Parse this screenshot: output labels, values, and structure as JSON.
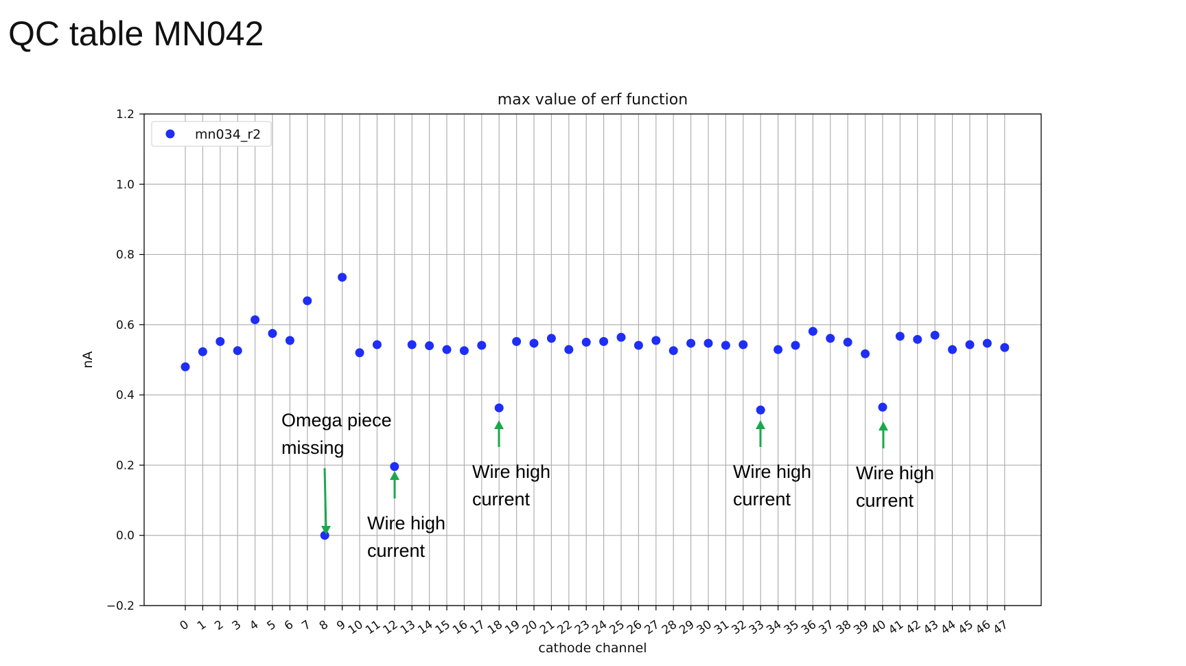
{
  "slide": {
    "title": "QC table MN042"
  },
  "chart_data": {
    "type": "scatter",
    "title": "max value of erf function",
    "xlabel": "cathode channel",
    "ylabel": "nA",
    "ylim": [
      -0.2,
      1.2
    ],
    "yticks": [
      -0.2,
      0.0,
      0.2,
      0.4,
      0.6,
      0.8,
      1.0,
      1.2
    ],
    "ytick_labels": [
      "−0.2",
      "0.0",
      "0.2",
      "0.4",
      "0.6",
      "0.8",
      "1.0",
      "1.2"
    ],
    "x": [
      0,
      1,
      2,
      3,
      4,
      5,
      6,
      7,
      8,
      9,
      10,
      11,
      12,
      13,
      14,
      15,
      16,
      17,
      18,
      19,
      20,
      21,
      22,
      23,
      24,
      25,
      26,
      27,
      28,
      29,
      30,
      31,
      32,
      33,
      34,
      35,
      36,
      37,
      38,
      39,
      40,
      41,
      42,
      43,
      44,
      45,
      46,
      47
    ],
    "xtick_labels": [
      "0",
      "1",
      "2",
      "3",
      "4",
      "5",
      "6",
      "7",
      "8",
      "9",
      "10",
      "11",
      "12",
      "13",
      "14",
      "15",
      "16",
      "17",
      "18",
      "19",
      "20",
      "21",
      "22",
      "23",
      "24",
      "25",
      "26",
      "27",
      "28",
      "29",
      "30",
      "31",
      "32",
      "33",
      "34",
      "35",
      "36",
      "37",
      "38",
      "39",
      "40",
      "41",
      "42",
      "43",
      "44",
      "45",
      "46",
      "47"
    ],
    "series": [
      {
        "name": "mn034_r2",
        "color": "#1f2ef5",
        "values": [
          0.48,
          0.523,
          0.552,
          0.526,
          0.614,
          0.575,
          0.555,
          0.668,
          0.0,
          0.735,
          0.52,
          0.543,
          0.196,
          0.543,
          0.54,
          0.529,
          0.526,
          0.541,
          0.363,
          0.552,
          0.547,
          0.561,
          0.529,
          0.55,
          0.552,
          0.564,
          0.541,
          0.555,
          0.526,
          0.547,
          0.547,
          0.541,
          0.543,
          0.357,
          0.529,
          0.541,
          0.581,
          0.561,
          0.55,
          0.517,
          0.365,
          0.567,
          0.558,
          0.57,
          0.529,
          0.543,
          0.547,
          0.535
        ]
      }
    ],
    "grid": true,
    "legend": "top-left",
    "annotations": [
      {
        "lines": [
          "Omega piece",
          "missing"
        ],
        "target_x": 8,
        "target_y": 0.0
      },
      {
        "lines": [
          "Wire high",
          "current"
        ],
        "target_x": 12,
        "target_y": 0.196
      },
      {
        "lines": [
          "Wire high",
          "current"
        ],
        "target_x": 18,
        "target_y": 0.363
      },
      {
        "lines": [
          "Wire high",
          "current"
        ],
        "target_x": 33,
        "target_y": 0.357
      },
      {
        "lines": [
          "Wire high",
          "current"
        ],
        "target_x": 40,
        "target_y": 0.365
      }
    ],
    "arrow_color": "#1aa84c"
  }
}
